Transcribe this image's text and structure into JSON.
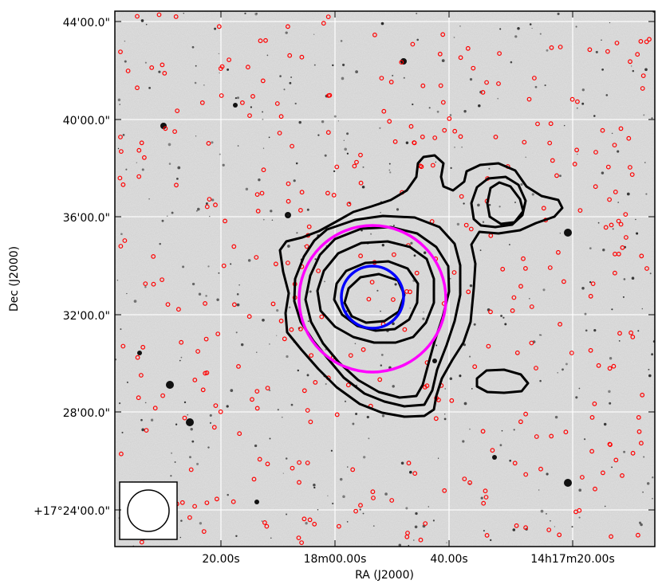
{
  "chart_data": {
    "type": "contour",
    "xlabel": "RA (J2000)",
    "ylabel": "Dec (J2000)",
    "x_ticks": [
      "20.00s",
      "18m00.00s",
      "40.00s",
      "14h17m20.00s"
    ],
    "y_ticks": [
      "44'00.0\"",
      "40'00.0\"",
      "36'00.0\"",
      "32'00.0\"",
      "28'00.0\"",
      "+17°24'00.0\""
    ],
    "grid": true,
    "overlay_circles": [
      {
        "name": "magenta-circle",
        "color": "#ff00ff"
      },
      {
        "name": "blue-circle",
        "color": "#0000ff"
      }
    ],
    "contours": {
      "color": "#000000",
      "levels": 6
    },
    "source_markers": {
      "color": "#ff0000",
      "shape": "circle"
    },
    "beam": {
      "shape": "circle",
      "legend_placement": "bottom-left"
    }
  }
}
